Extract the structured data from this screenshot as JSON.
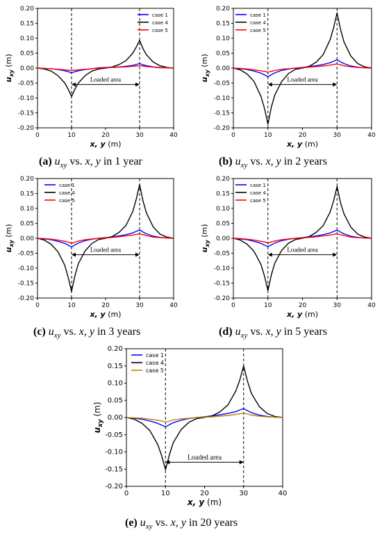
{
  "figure": {
    "panels": [
      {
        "id": "a",
        "label": "(a)",
        "years_text": "1 year"
      },
      {
        "id": "b",
        "label": "(b)",
        "years_text": "2 years"
      },
      {
        "id": "c",
        "label": "(c)",
        "years_text": "3 years"
      },
      {
        "id": "d",
        "label": "(d)",
        "years_text": "5 years"
      },
      {
        "id": "e",
        "label": "(e)",
        "years_text": "20 years"
      }
    ],
    "caption_parts": {
      "u": "u",
      "sub": "xy",
      "vs": "vs.",
      "xy": "x, y",
      "in": "in"
    }
  },
  "chart_data": [
    {
      "type": "line",
      "panel": "a",
      "xlabel": "x, y (m)",
      "ylabel": "u_xy (m)",
      "xlim": [
        0,
        40
      ],
      "ylim": [
        -0.2,
        0.2
      ],
      "xticks": [
        "0",
        "10",
        "20",
        "30",
        "40"
      ],
      "yticks": [
        "-0.20",
        "-0.15",
        "-0.10",
        "-0.05",
        "0.00",
        "0.05",
        "0.10",
        "0.15",
        "0.20"
      ],
      "vlines": [
        10,
        30
      ],
      "annotation": {
        "text": "Loaded area",
        "x_from": 10,
        "x_to": 30,
        "y": -0.055
      },
      "legend": "top-right",
      "series": [
        {
          "name": "case 1",
          "color": "#0000ff",
          "x": [
            0,
            2,
            4,
            6,
            8,
            9,
            10,
            11,
            12,
            14,
            16,
            18,
            20,
            22,
            24,
            26,
            28,
            29,
            30,
            31,
            32,
            34,
            36,
            38,
            40
          ],
          "y": [
            0,
            -0.001,
            -0.002,
            -0.005,
            -0.009,
            -0.012,
            -0.016,
            -0.012,
            -0.009,
            -0.005,
            -0.002,
            0.001,
            0.002,
            0.003,
            0.004,
            0.006,
            0.009,
            0.012,
            0.015,
            0.011,
            0.008,
            0.004,
            0.002,
            0.001,
            0
          ]
        },
        {
          "name": "case 4",
          "color": "#000000",
          "x": [
            0,
            2,
            4,
            6,
            8,
            9,
            10,
            11,
            12,
            14,
            16,
            18,
            20,
            22,
            24,
            26,
            28,
            29,
            30,
            31,
            32,
            34,
            36,
            38,
            40
          ],
          "y": [
            0,
            -0.003,
            -0.01,
            -0.025,
            -0.05,
            -0.07,
            -0.095,
            -0.07,
            -0.05,
            -0.025,
            -0.01,
            -0.003,
            0,
            0.004,
            0.012,
            0.025,
            0.05,
            0.07,
            0.093,
            0.065,
            0.045,
            0.02,
            0.008,
            0.002,
            0
          ]
        },
        {
          "name": "case 5",
          "color": "#ff0000",
          "x": [
            0,
            2,
            4,
            6,
            8,
            9,
            10,
            11,
            12,
            14,
            16,
            18,
            20,
            22,
            24,
            26,
            28,
            29,
            30,
            31,
            32,
            34,
            36,
            38,
            40
          ],
          "y": [
            0,
            -0.001,
            -0.002,
            -0.004,
            -0.006,
            -0.007,
            -0.008,
            -0.007,
            -0.006,
            -0.004,
            -0.002,
            0,
            0.001,
            0.002,
            0.003,
            0.004,
            0.006,
            0.007,
            0.008,
            0.007,
            0.005,
            0.003,
            0.001,
            0.001,
            0
          ]
        }
      ]
    },
    {
      "type": "line",
      "panel": "b",
      "xlabel": "x, y (m)",
      "ylabel": "u_xy (m)",
      "xlim": [
        0,
        40
      ],
      "ylim": [
        -0.2,
        0.2
      ],
      "xticks": [
        "0",
        "10",
        "20",
        "30",
        "40"
      ],
      "yticks": [
        "-0.20",
        "-0.15",
        "-0.10",
        "-0.05",
        "0.00",
        "0.05",
        "0.10",
        "0.15",
        "0.20"
      ],
      "vlines": [
        10,
        30
      ],
      "annotation": {
        "text": "Loaded area",
        "x_from": 10,
        "x_to": 30,
        "y": -0.055
      },
      "legend": "top-left",
      "series": [
        {
          "name": "case 1",
          "color": "#0000ff",
          "x": [
            0,
            2,
            4,
            6,
            8,
            9,
            10,
            11,
            12,
            14,
            16,
            18,
            20,
            22,
            24,
            26,
            28,
            29,
            30,
            31,
            32,
            34,
            36,
            38,
            40
          ],
          "y": [
            0,
            -0.002,
            -0.005,
            -0.01,
            -0.017,
            -0.023,
            -0.029,
            -0.022,
            -0.016,
            -0.008,
            -0.003,
            0,
            0.002,
            0.005,
            0.008,
            0.012,
            0.018,
            0.023,
            0.028,
            0.021,
            0.015,
            0.007,
            0.003,
            0.001,
            0
          ]
        },
        {
          "name": "case 4",
          "color": "#000000",
          "x": [
            0,
            2,
            4,
            6,
            8,
            9,
            10,
            11,
            12,
            14,
            16,
            18,
            20,
            22,
            24,
            26,
            28,
            29,
            30,
            31,
            32,
            34,
            36,
            38,
            40
          ],
          "y": [
            0,
            -0.006,
            -0.02,
            -0.045,
            -0.095,
            -0.135,
            -0.188,
            -0.13,
            -0.09,
            -0.045,
            -0.018,
            -0.004,
            0,
            0.006,
            0.02,
            0.045,
            0.095,
            0.135,
            0.185,
            0.13,
            0.088,
            0.04,
            0.015,
            0.004,
            0
          ]
        },
        {
          "name": "case 5",
          "color": "#ff0000",
          "x": [
            0,
            2,
            4,
            6,
            8,
            9,
            10,
            11,
            12,
            14,
            16,
            18,
            20,
            22,
            24,
            26,
            28,
            29,
            30,
            31,
            32,
            34,
            36,
            38,
            40
          ],
          "y": [
            0,
            -0.001,
            -0.003,
            -0.006,
            -0.009,
            -0.011,
            -0.014,
            -0.011,
            -0.008,
            -0.004,
            -0.002,
            0,
            0.001,
            0.003,
            0.005,
            0.007,
            0.01,
            0.012,
            0.014,
            0.011,
            0.008,
            0.004,
            0.002,
            0.001,
            0
          ]
        }
      ]
    },
    {
      "type": "line",
      "panel": "c",
      "xlabel": "x, y (m)",
      "ylabel": "u_xy (m)",
      "xlim": [
        0,
        40
      ],
      "ylim": [
        -0.2,
        0.2
      ],
      "xticks": [
        "0",
        "10",
        "20",
        "30",
        "40"
      ],
      "yticks": [
        "-0.20",
        "-0.15",
        "-0.10",
        "-0.05",
        "0.00",
        "0.05",
        "0.10",
        "0.15",
        "0.20"
      ],
      "vlines": [
        10,
        30
      ],
      "annotation": {
        "text": "Loaded area",
        "x_from": 10,
        "x_to": 30,
        "y": -0.055
      },
      "legend": "top-left",
      "series": [
        {
          "name": "case 1",
          "color": "#0000ff",
          "x": [
            0,
            2,
            4,
            6,
            8,
            9,
            10,
            11,
            12,
            14,
            16,
            18,
            20,
            22,
            24,
            26,
            28,
            29,
            30,
            31,
            32,
            34,
            36,
            38,
            40
          ],
          "y": [
            0,
            -0.002,
            -0.005,
            -0.01,
            -0.017,
            -0.023,
            -0.029,
            -0.022,
            -0.016,
            -0.008,
            -0.003,
            0,
            0.002,
            0.005,
            0.008,
            0.012,
            0.018,
            0.023,
            0.028,
            0.021,
            0.015,
            0.007,
            0.003,
            0.001,
            0
          ]
        },
        {
          "name": "case 4",
          "color": "#000000",
          "x": [
            0,
            2,
            4,
            6,
            8,
            9,
            10,
            11,
            12,
            14,
            16,
            18,
            20,
            22,
            24,
            26,
            28,
            29,
            30,
            31,
            32,
            34,
            36,
            38,
            40
          ],
          "y": [
            0,
            -0.006,
            -0.02,
            -0.045,
            -0.09,
            -0.13,
            -0.178,
            -0.125,
            -0.085,
            -0.042,
            -0.017,
            -0.004,
            0,
            0.006,
            0.02,
            0.043,
            0.09,
            0.13,
            0.18,
            0.125,
            0.085,
            0.038,
            0.014,
            0.004,
            0
          ]
        },
        {
          "name": "case 5",
          "color": "#ff0000",
          "x": [
            0,
            2,
            4,
            6,
            8,
            9,
            10,
            11,
            12,
            14,
            16,
            18,
            20,
            22,
            24,
            26,
            28,
            29,
            30,
            31,
            32,
            34,
            36,
            38,
            40
          ],
          "y": [
            0,
            -0.001,
            -0.003,
            -0.006,
            -0.01,
            -0.013,
            -0.017,
            -0.013,
            -0.009,
            -0.005,
            -0.002,
            0,
            0.001,
            0.003,
            0.005,
            0.008,
            0.011,
            0.013,
            0.015,
            0.012,
            0.009,
            0.004,
            0.002,
            0.001,
            0
          ]
        }
      ]
    },
    {
      "type": "line",
      "panel": "d",
      "xlabel": "x, y (m)",
      "ylabel": "u_xy (m)",
      "xlim": [
        0,
        40
      ],
      "ylim": [
        -0.2,
        0.2
      ],
      "xticks": [
        "0",
        "10",
        "20",
        "30",
        "40"
      ],
      "yticks": [
        "-0.20",
        "-0.15",
        "-0.10",
        "-0.05",
        "0.00",
        "0.05",
        "0.10",
        "0.15",
        "0.20"
      ],
      "vlines": [
        10,
        30
      ],
      "annotation": {
        "text": "Loaded area",
        "x_from": 10,
        "x_to": 30,
        "y": -0.055
      },
      "legend": "top-left",
      "series": [
        {
          "name": "case 1",
          "color": "#0000ff",
          "x": [
            0,
            2,
            4,
            6,
            8,
            9,
            10,
            11,
            12,
            14,
            16,
            18,
            20,
            22,
            24,
            26,
            28,
            29,
            30,
            31,
            32,
            34,
            36,
            38,
            40
          ],
          "y": [
            0,
            -0.002,
            -0.005,
            -0.01,
            -0.017,
            -0.023,
            -0.028,
            -0.022,
            -0.016,
            -0.008,
            -0.003,
            0,
            0.002,
            0.005,
            0.008,
            0.012,
            0.018,
            0.023,
            0.027,
            0.021,
            0.015,
            0.007,
            0.003,
            0.001,
            0
          ]
        },
        {
          "name": "case 4",
          "color": "#000000",
          "x": [
            0,
            2,
            4,
            6,
            8,
            9,
            10,
            11,
            12,
            14,
            16,
            18,
            20,
            22,
            24,
            26,
            28,
            29,
            30,
            31,
            32,
            34,
            36,
            38,
            40
          ],
          "y": [
            0,
            -0.006,
            -0.02,
            -0.044,
            -0.088,
            -0.127,
            -0.175,
            -0.122,
            -0.083,
            -0.04,
            -0.016,
            -0.004,
            0,
            0.006,
            0.02,
            0.042,
            0.088,
            0.125,
            0.173,
            0.12,
            0.082,
            0.037,
            0.014,
            0.004,
            0
          ]
        },
        {
          "name": "case 5",
          "color": "#ff0000",
          "x": [
            0,
            2,
            4,
            6,
            8,
            9,
            10,
            11,
            12,
            14,
            16,
            18,
            20,
            22,
            24,
            26,
            28,
            29,
            30,
            31,
            32,
            34,
            36,
            38,
            40
          ],
          "y": [
            0,
            -0.001,
            -0.003,
            -0.006,
            -0.01,
            -0.012,
            -0.016,
            -0.012,
            -0.009,
            -0.005,
            -0.002,
            0,
            0.001,
            0.003,
            0.005,
            0.008,
            0.011,
            0.013,
            0.015,
            0.012,
            0.009,
            0.004,
            0.002,
            0.001,
            0
          ]
        }
      ]
    },
    {
      "type": "line",
      "panel": "e",
      "xlabel": "x, y (m)",
      "ylabel": "u_xy (m)",
      "xlim": [
        0,
        40
      ],
      "ylim": [
        -0.2,
        0.2
      ],
      "xticks": [
        "0",
        "10",
        "20",
        "30",
        "40"
      ],
      "yticks": [
        "-0.20",
        "-0.15",
        "-0.10",
        "-0.05",
        "0.00",
        "0.05",
        "0.10",
        "0.15",
        "0.20"
      ],
      "vlines": [
        10,
        30
      ],
      "annotation": {
        "text": "Loaded area",
        "x_from": 10,
        "x_to": 30,
        "y": -0.13
      },
      "legend": "top-left",
      "series": [
        {
          "name": "case 1",
          "color": "#0000ff",
          "x": [
            0,
            2,
            4,
            6,
            8,
            9,
            10,
            11,
            12,
            14,
            16,
            18,
            20,
            22,
            24,
            26,
            28,
            29,
            30,
            31,
            32,
            34,
            36,
            38,
            40
          ],
          "y": [
            0,
            -0.002,
            -0.005,
            -0.01,
            -0.017,
            -0.022,
            -0.027,
            -0.021,
            -0.015,
            -0.008,
            -0.003,
            0,
            0.002,
            0.005,
            0.008,
            0.012,
            0.017,
            0.022,
            0.026,
            0.02,
            0.014,
            0.007,
            0.003,
            0.001,
            0
          ]
        },
        {
          "name": "case 4",
          "color": "#000000",
          "x": [
            0,
            2,
            4,
            6,
            8,
            9,
            10,
            11,
            12,
            14,
            16,
            18,
            20,
            22,
            24,
            26,
            28,
            29,
            30,
            31,
            32,
            34,
            36,
            38,
            40
          ],
          "y": [
            0,
            -0.005,
            -0.017,
            -0.038,
            -0.078,
            -0.11,
            -0.152,
            -0.108,
            -0.073,
            -0.035,
            -0.014,
            -0.003,
            0,
            0.005,
            0.017,
            0.037,
            0.077,
            0.108,
            0.15,
            0.105,
            0.07,
            0.032,
            0.012,
            0.003,
            0
          ]
        },
        {
          "name": "case 5",
          "color": "#b8860b",
          "x": [
            0,
            2,
            4,
            6,
            8,
            9,
            10,
            11,
            12,
            14,
            16,
            18,
            20,
            22,
            24,
            26,
            28,
            29,
            30,
            31,
            32,
            34,
            36,
            38,
            40
          ],
          "y": [
            0,
            -0.001,
            -0.002,
            -0.005,
            -0.008,
            -0.01,
            -0.013,
            -0.01,
            -0.007,
            -0.004,
            -0.002,
            0,
            0.001,
            0.002,
            0.004,
            0.006,
            0.009,
            0.011,
            0.013,
            0.01,
            0.007,
            0.004,
            0.002,
            0.001,
            0
          ]
        }
      ]
    }
  ]
}
